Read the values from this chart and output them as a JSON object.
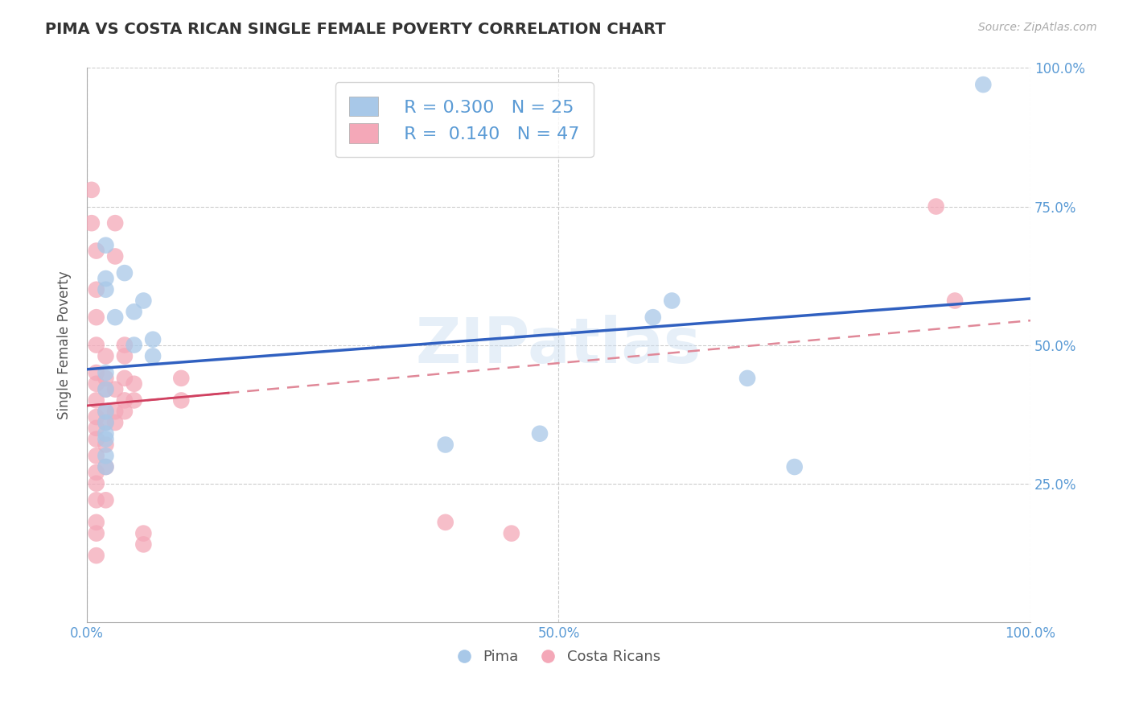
{
  "title": "PIMA VS COSTA RICAN SINGLE FEMALE POVERTY CORRELATION CHART",
  "source": "Source: ZipAtlas.com",
  "xlabel": "",
  "ylabel": "Single Female Poverty",
  "xlim": [
    0,
    1
  ],
  "ylim": [
    0,
    1
  ],
  "x_ticks": [
    0.0,
    0.5,
    1.0
  ],
  "x_tick_labels": [
    "0.0%",
    "50.0%",
    "100.0%"
  ],
  "y_ticks": [
    0.25,
    0.5,
    0.75,
    1.0
  ],
  "y_tick_labels": [
    "25.0%",
    "50.0%",
    "75.0%",
    "100.0%"
  ],
  "pima_R": "0.300",
  "pima_N": "25",
  "costa_R": "0.140",
  "costa_N": "47",
  "pima_color": "#A8C8E8",
  "costa_color": "#F4A8B8",
  "pima_line_color": "#3060C0",
  "costa_line_solid_color": "#D04060",
  "costa_line_dash_color": "#E08898",
  "watermark": "ZIPatlas",
  "pima_points": [
    [
      0.02,
      0.68
    ],
    [
      0.02,
      0.62
    ],
    [
      0.02,
      0.6
    ],
    [
      0.02,
      0.45
    ],
    [
      0.02,
      0.42
    ],
    [
      0.02,
      0.38
    ],
    [
      0.02,
      0.36
    ],
    [
      0.02,
      0.34
    ],
    [
      0.02,
      0.33
    ],
    [
      0.02,
      0.3
    ],
    [
      0.02,
      0.28
    ],
    [
      0.03,
      0.55
    ],
    [
      0.04,
      0.63
    ],
    [
      0.05,
      0.56
    ],
    [
      0.05,
      0.5
    ],
    [
      0.06,
      0.58
    ],
    [
      0.07,
      0.51
    ],
    [
      0.07,
      0.48
    ],
    [
      0.38,
      0.32
    ],
    [
      0.48,
      0.34
    ],
    [
      0.6,
      0.55
    ],
    [
      0.62,
      0.58
    ],
    [
      0.7,
      0.44
    ],
    [
      0.75,
      0.28
    ],
    [
      0.95,
      0.97
    ]
  ],
  "costa_points": [
    [
      0.005,
      0.78
    ],
    [
      0.005,
      0.72
    ],
    [
      0.01,
      0.67
    ],
    [
      0.01,
      0.6
    ],
    [
      0.01,
      0.55
    ],
    [
      0.01,
      0.5
    ],
    [
      0.01,
      0.45
    ],
    [
      0.01,
      0.43
    ],
    [
      0.01,
      0.4
    ],
    [
      0.01,
      0.37
    ],
    [
      0.01,
      0.35
    ],
    [
      0.01,
      0.33
    ],
    [
      0.01,
      0.3
    ],
    [
      0.01,
      0.27
    ],
    [
      0.01,
      0.25
    ],
    [
      0.01,
      0.22
    ],
    [
      0.01,
      0.18
    ],
    [
      0.01,
      0.16
    ],
    [
      0.01,
      0.12
    ],
    [
      0.02,
      0.48
    ],
    [
      0.02,
      0.44
    ],
    [
      0.02,
      0.42
    ],
    [
      0.02,
      0.38
    ],
    [
      0.02,
      0.36
    ],
    [
      0.02,
      0.32
    ],
    [
      0.02,
      0.28
    ],
    [
      0.02,
      0.22
    ],
    [
      0.03,
      0.72
    ],
    [
      0.03,
      0.66
    ],
    [
      0.03,
      0.42
    ],
    [
      0.03,
      0.38
    ],
    [
      0.03,
      0.36
    ],
    [
      0.04,
      0.5
    ],
    [
      0.04,
      0.48
    ],
    [
      0.04,
      0.44
    ],
    [
      0.04,
      0.4
    ],
    [
      0.04,
      0.38
    ],
    [
      0.05,
      0.43
    ],
    [
      0.05,
      0.4
    ],
    [
      0.06,
      0.16
    ],
    [
      0.06,
      0.14
    ],
    [
      0.1,
      0.44
    ],
    [
      0.1,
      0.4
    ],
    [
      0.38,
      0.18
    ],
    [
      0.45,
      0.16
    ],
    [
      0.9,
      0.75
    ],
    [
      0.92,
      0.58
    ]
  ]
}
